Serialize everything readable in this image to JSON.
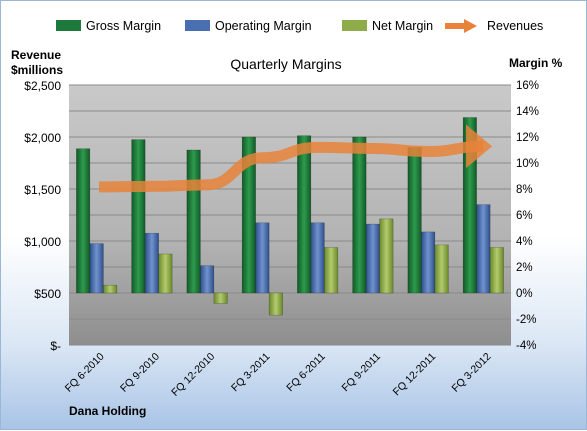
{
  "chart_data": {
    "type": "bar",
    "title": "Quarterly Margins",
    "ylabel_left_line1": "Revenue",
    "ylabel_left_line2": "$millions",
    "ylabel_right": "Margin %",
    "company": "Dana Holding",
    "categories": [
      "FQ 6-2010",
      "FQ 9-2010",
      "FQ 12-2010",
      "FQ 3-2011",
      "FQ 6-2011",
      "FQ 9-2011",
      "FQ 12-2011",
      "FQ 3-2012"
    ],
    "left_axis": {
      "min": 0,
      "max": 2500,
      "ticks": [
        "$-",
        "$500",
        "$1,000",
        "$1,500",
        "$2,000",
        "$2,500"
      ]
    },
    "right_axis": {
      "min": -4,
      "max": 16,
      "ticks": [
        "-4%",
        "-2%",
        "0%",
        "2%",
        "4%",
        "6%",
        "8%",
        "10%",
        "12%",
        "14%",
        "16%"
      ]
    },
    "grid": true,
    "legend_position": "top",
    "series": [
      {
        "name": "Gross Margin",
        "axis": "right",
        "color": "#1e7a3c",
        "values": [
          11.1,
          11.8,
          11.0,
          12.0,
          12.1,
          12.0,
          11.2,
          13.5
        ]
      },
      {
        "name": "Operating Margin",
        "axis": "right",
        "color": "#4a6fb0",
        "values": [
          3.8,
          4.6,
          2.1,
          5.4,
          5.4,
          5.3,
          4.7,
          6.8
        ]
      },
      {
        "name": "Net Margin",
        "axis": "right",
        "color": "#8fac4a",
        "values": [
          0.6,
          3.0,
          -0.8,
          -1.7,
          3.5,
          5.7,
          3.7,
          3.5
        ]
      },
      {
        "name": "Revenues",
        "axis": "left",
        "color": "#e8823a",
        "values": [
          1520,
          1525,
          1540,
          1800,
          1900,
          1890,
          1860,
          1910
        ]
      }
    ]
  }
}
